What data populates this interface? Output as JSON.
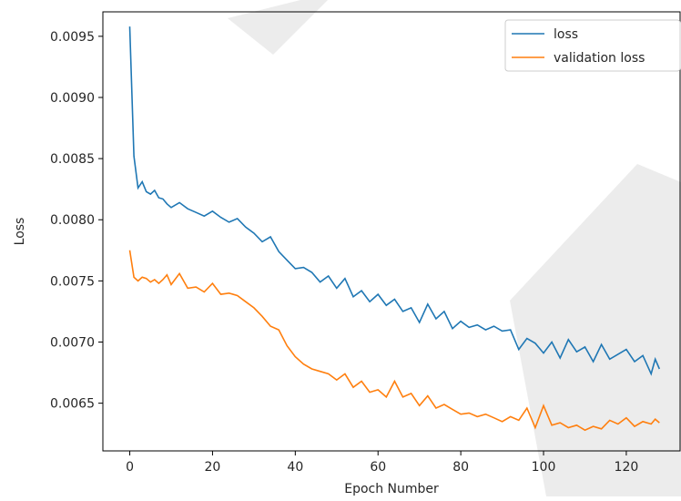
{
  "chart_data": {
    "type": "line",
    "xlabel": "Epoch Number",
    "ylabel": "Loss",
    "xlim": [
      -6.5,
      133
    ],
    "ylim": [
      0.00611,
      0.0097
    ],
    "xticks": [
      0,
      20,
      40,
      60,
      80,
      100,
      120
    ],
    "xtick_labels": [
      "0",
      "20",
      "40",
      "60",
      "80",
      "100",
      "120"
    ],
    "yticks": [
      0.0065,
      0.007,
      0.0075,
      0.008,
      0.0085,
      0.009,
      0.0095
    ],
    "ytick_labels": [
      "0.0065",
      "0.0070",
      "0.0075",
      "0.0080",
      "0.0085",
      "0.0090",
      "0.0095"
    ],
    "grid": false,
    "legend_position": "top-right",
    "series": [
      {
        "name": "loss",
        "color": "#1f77b4",
        "x": [
          0,
          1,
          2,
          3,
          4,
          5,
          6,
          7,
          8,
          9,
          10,
          12,
          14,
          16,
          18,
          20,
          22,
          24,
          26,
          28,
          30,
          32,
          34,
          36,
          38,
          40,
          42,
          44,
          46,
          48,
          50,
          52,
          54,
          56,
          58,
          60,
          62,
          64,
          66,
          68,
          70,
          72,
          74,
          76,
          78,
          80,
          82,
          84,
          86,
          88,
          90,
          92,
          94,
          96,
          98,
          100,
          102,
          104,
          106,
          108,
          110,
          112,
          114,
          116,
          118,
          120,
          122,
          124,
          126,
          127,
          128
        ],
        "values": [
          0.00958,
          0.00852,
          0.00826,
          0.00831,
          0.00823,
          0.00821,
          0.00824,
          0.00818,
          0.00817,
          0.00813,
          0.0081,
          0.00814,
          0.00809,
          0.00806,
          0.00803,
          0.00807,
          0.00802,
          0.00798,
          0.00801,
          0.00794,
          0.00789,
          0.00782,
          0.00786,
          0.00774,
          0.00767,
          0.0076,
          0.00761,
          0.00757,
          0.00749,
          0.00754,
          0.00744,
          0.00752,
          0.00737,
          0.00742,
          0.00733,
          0.00739,
          0.0073,
          0.00735,
          0.00725,
          0.00728,
          0.00716,
          0.00731,
          0.00719,
          0.00725,
          0.00711,
          0.00717,
          0.00712,
          0.00714,
          0.0071,
          0.00713,
          0.00709,
          0.0071,
          0.00694,
          0.00703,
          0.00699,
          0.00691,
          0.007,
          0.00687,
          0.00702,
          0.00692,
          0.00696,
          0.00684,
          0.00698,
          0.00686,
          0.0069,
          0.00694,
          0.00684,
          0.00689,
          0.00674,
          0.00686,
          0.00678
        ]
      },
      {
        "name": "validation loss",
        "color": "#ff7f0e",
        "x": [
          0,
          1,
          2,
          3,
          4,
          5,
          6,
          7,
          8,
          9,
          10,
          12,
          14,
          16,
          18,
          20,
          22,
          24,
          26,
          28,
          30,
          32,
          34,
          36,
          38,
          40,
          42,
          44,
          46,
          48,
          50,
          52,
          54,
          56,
          58,
          60,
          62,
          64,
          66,
          68,
          70,
          72,
          74,
          76,
          78,
          80,
          82,
          84,
          86,
          88,
          90,
          92,
          94,
          96,
          98,
          100,
          102,
          104,
          106,
          108,
          110,
          112,
          114,
          116,
          118,
          120,
          122,
          124,
          126,
          127,
          128
        ],
        "values": [
          0.00775,
          0.00753,
          0.0075,
          0.00753,
          0.00752,
          0.00749,
          0.00751,
          0.00748,
          0.00751,
          0.00755,
          0.00747,
          0.00756,
          0.00744,
          0.00745,
          0.00741,
          0.00748,
          0.00739,
          0.0074,
          0.00738,
          0.00733,
          0.00728,
          0.00721,
          0.00713,
          0.0071,
          0.00697,
          0.00688,
          0.00682,
          0.00678,
          0.00676,
          0.00674,
          0.00669,
          0.00674,
          0.00663,
          0.00668,
          0.00659,
          0.00661,
          0.00655,
          0.00668,
          0.00655,
          0.00658,
          0.00648,
          0.00656,
          0.00646,
          0.00649,
          0.00645,
          0.00641,
          0.00642,
          0.00639,
          0.00641,
          0.00638,
          0.00635,
          0.00639,
          0.00636,
          0.00646,
          0.0063,
          0.00648,
          0.00632,
          0.00634,
          0.0063,
          0.00632,
          0.00628,
          0.00631,
          0.00629,
          0.00636,
          0.00633,
          0.00638,
          0.00631,
          0.00635,
          0.00633,
          0.00637,
          0.00634
        ]
      }
    ]
  }
}
